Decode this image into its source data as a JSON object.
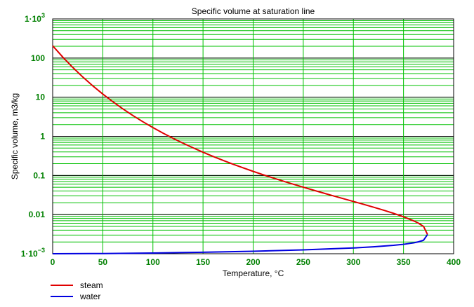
{
  "chart_data": {
    "type": "line",
    "title": "Specific volume at saturation line",
    "xlabel": "Temperature, °C",
    "ylabel": "Specific volume, m3/kg",
    "xlim": [
      0,
      400
    ],
    "ylim": [
      0.001,
      1000
    ],
    "yscale": "log",
    "grid": true,
    "legend_position": "bottom-left",
    "x_ticks": [
      "0",
      "50",
      "100",
      "150",
      "200",
      "250",
      "300",
      "350",
      "400"
    ],
    "y_ticks": [
      {
        "value": 0.001,
        "base": "1·10",
        "exp": "−3"
      },
      {
        "value": 0.01,
        "label": "0.01"
      },
      {
        "value": 0.1,
        "label": "0.1"
      },
      {
        "value": 1,
        "label": "1"
      },
      {
        "value": 10,
        "label": "10"
      },
      {
        "value": 100,
        "label": "100"
      },
      {
        "value": 1000,
        "base": "1·10",
        "exp": "3"
      }
    ],
    "series": [
      {
        "name": "steam",
        "color": "#e00000",
        "x": [
          0.01,
          10,
          20,
          30,
          40,
          50,
          60,
          70,
          80,
          90,
          100,
          110,
          120,
          130,
          140,
          150,
          160,
          170,
          180,
          190,
          200,
          210,
          220,
          230,
          240,
          250,
          260,
          270,
          280,
          290,
          300,
          310,
          320,
          330,
          340,
          350,
          360,
          365,
          370,
          373.95
        ],
        "y": [
          206.0,
          106.3,
          57.76,
          32.88,
          19.52,
          12.03,
          7.667,
          5.04,
          3.405,
          2.359,
          1.672,
          1.209,
          0.8912,
          0.6681,
          0.5085,
          0.3925,
          0.3068,
          0.2426,
          0.1939,
          0.1564,
          0.1272,
          0.1043,
          0.08609,
          0.0715,
          0.0597,
          0.05008,
          0.04218,
          0.03562,
          0.03015,
          0.02556,
          0.02166,
          0.01834,
          0.01547,
          0.01298,
          0.01078,
          0.0088,
          0.00694,
          0.00601,
          0.00497,
          0.0031
        ]
      },
      {
        "name": "water",
        "color": "#0000e0",
        "x": [
          0.01,
          50,
          100,
          150,
          200,
          250,
          300,
          320,
          340,
          350,
          360,
          365,
          370,
          373.95
        ],
        "y": [
          0.001,
          0.001012,
          0.001044,
          0.001091,
          0.001157,
          0.001252,
          0.001404,
          0.001499,
          0.001638,
          0.001741,
          0.001895,
          0.002016,
          0.002213,
          0.0031
        ]
      }
    ]
  }
}
